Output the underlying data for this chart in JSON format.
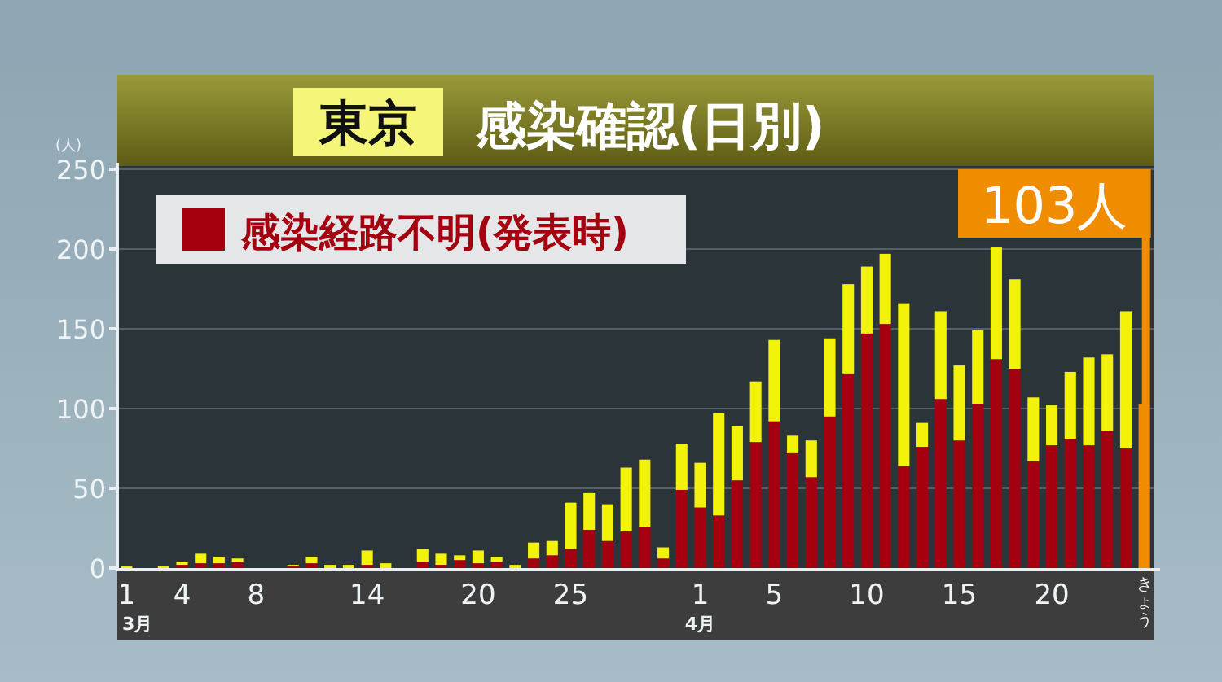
{
  "chart_data": {
    "type": "bar",
    "stacked": true,
    "title": "東京",
    "subtitle": "感染確認(日別)",
    "ylabel": "(人)",
    "categories": [
      "1\n3月",
      null,
      null,
      "4",
      null,
      null,
      null,
      "8",
      null,
      null,
      null,
      null,
      null,
      "14",
      null,
      null,
      null,
      null,
      null,
      "20",
      null,
      null,
      null,
      null,
      "25",
      null,
      null,
      null,
      null,
      null,
      null,
      "1\n4月",
      null,
      null,
      null,
      "5",
      null,
      null,
      null,
      null,
      "10",
      null,
      null,
      null,
      null,
      "15",
      null,
      null,
      null,
      null,
      "20",
      null,
      null,
      null,
      null,
      "きょう"
    ],
    "series": [
      {
        "name": "感染経路不明(発表時)",
        "color": "#a50010",
        "values": [
          0,
          0,
          0,
          2,
          3,
          3,
          4,
          0,
          0,
          1,
          3,
          0,
          0,
          2,
          0,
          0,
          4,
          2,
          5,
          3,
          4,
          0,
          6,
          8,
          12,
          24,
          17,
          23,
          26,
          6,
          49,
          38,
          33,
          55,
          79,
          92,
          72,
          57,
          95,
          122,
          147,
          153,
          64,
          76,
          106,
          80,
          103,
          131,
          125,
          67,
          77,
          81,
          77,
          86,
          75,
          null
        ]
      },
      {
        "color": "#f2f20a",
        "values": [
          1,
          0,
          1,
          2,
          6,
          4,
          2,
          0,
          0,
          1,
          4,
          2,
          2,
          9,
          3,
          0,
          8,
          7,
          3,
          8,
          3,
          2,
          10,
          9,
          29,
          23,
          23,
          40,
          42,
          7,
          29,
          28,
          64,
          34,
          38,
          51,
          11,
          23,
          49,
          56,
          42,
          44,
          102,
          15,
          55,
          47,
          46,
          70,
          56,
          40,
          25,
          42,
          55,
          48,
          86,
          null
        ]
      },
      {
        "color": "#f08c00",
        "values": [
          null,
          null,
          null,
          null,
          null,
          null,
          null,
          null,
          null,
          null,
          null,
          null,
          null,
          null,
          null,
          null,
          null,
          null,
          null,
          null,
          null,
          null,
          null,
          null,
          null,
          null,
          null,
          null,
          null,
          null,
          null,
          null,
          null,
          null,
          null,
          null,
          null,
          null,
          null,
          null,
          null,
          null,
          null,
          null,
          null,
          null,
          null,
          null,
          null,
          null,
          null,
          null,
          null,
          null,
          null,
          103
        ]
      }
    ],
    "ylim": [
      0,
      250
    ],
    "yticks": [
      0,
      50,
      100,
      150,
      200,
      250
    ],
    "grid": "y",
    "legend": "top left",
    "annotations": [
      {
        "text": "103人",
        "x": "きょう",
        "y": 103
      }
    ]
  }
}
